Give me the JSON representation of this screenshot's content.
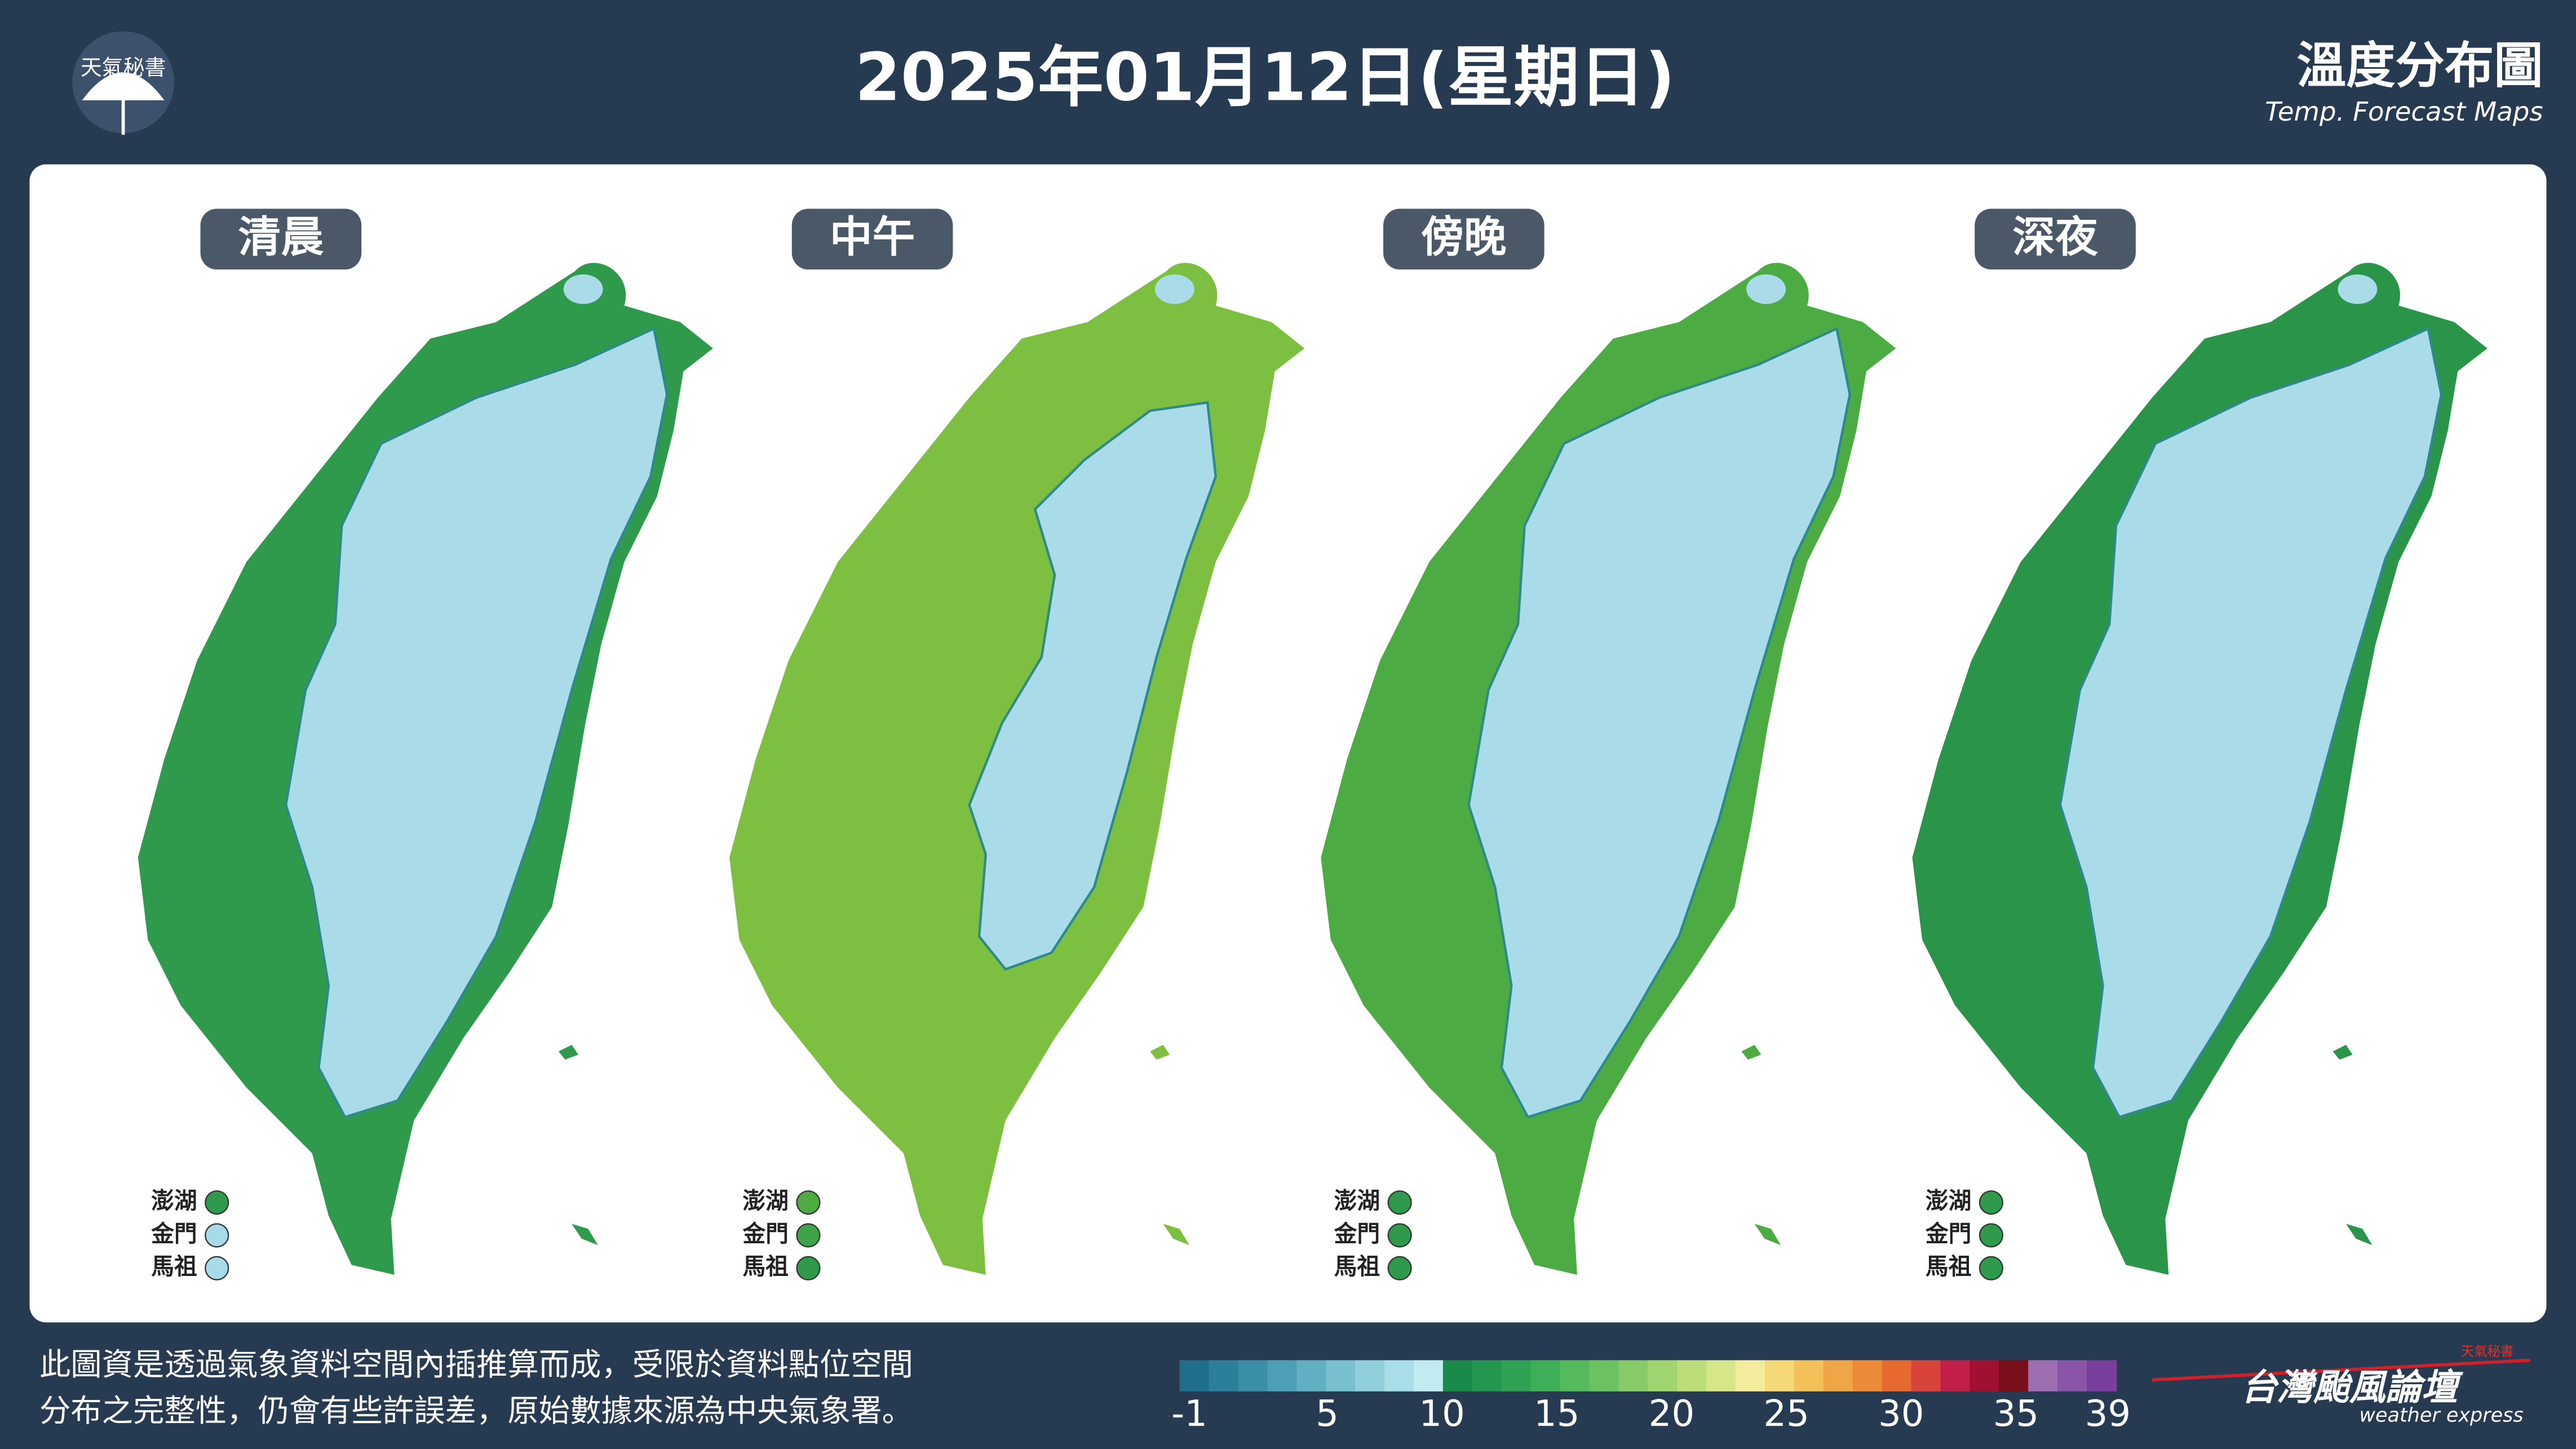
{
  "header": {
    "logo": "天氣秘書",
    "title": "2025年01月12日(星期日)",
    "map_title": "溫度分布圖",
    "map_subtitle": "Temp. Forecast Maps"
  },
  "panels": [
    {
      "label": "清晨",
      "land_color": "#2f9a4c",
      "islands": [
        {
          "name": "澎湖",
          "color": "#2f9a4c"
        },
        {
          "name": "金門",
          "color": "#a8dbe8"
        },
        {
          "name": "馬祖",
          "color": "#a8dbe8"
        }
      ]
    },
    {
      "label": "中午",
      "land_color": "#7dbf40",
      "islands": [
        {
          "name": "澎湖",
          "color": "#4eab42"
        },
        {
          "name": "金門",
          "color": "#3fa448"
        },
        {
          "name": "馬祖",
          "color": "#2f9a4c"
        }
      ]
    },
    {
      "label": "傍晚",
      "land_color": "#4dab44",
      "islands": [
        {
          "name": "澎湖",
          "color": "#2f9a4c"
        },
        {
          "name": "金門",
          "color": "#2f9a4c"
        },
        {
          "name": "馬祖",
          "color": "#2f9a4c"
        }
      ]
    },
    {
      "label": "深夜",
      "land_color": "#2a9448",
      "islands": [
        {
          "name": "澎湖",
          "color": "#2f9a4c"
        },
        {
          "name": "金門",
          "color": "#2f9a4c"
        },
        {
          "name": "馬祖",
          "color": "#2f9a4c"
        }
      ]
    }
  ],
  "footnote": [
    "此圖資是透過氣象資料空間內插推算而成，受限於資料點位空間",
    "分布之完整性，仍會有些許誤差，原始數據來源為中央氣象署。"
  ],
  "colorbar": {
    "colors": [
      "#1f6f8b",
      "#2b7f98",
      "#3a8fa6",
      "#4c9fb4",
      "#61afc2",
      "#78bfcf",
      "#90cfdc",
      "#a9dde7",
      "#c2ebf1",
      "#1a8a4a",
      "#23964f",
      "#2fa254",
      "#3fae58",
      "#55b95d",
      "#6cc262",
      "#86cb68",
      "#a0d46f",
      "#bddd7a",
      "#d8e68a",
      "#f3ec9c",
      "#f6d977",
      "#f4c05a",
      "#f0a646",
      "#ec8a3a",
      "#e66a30",
      "#d9443a",
      "#c21f4a",
      "#a01030",
      "#7a0f1c",
      "#9e6fb0",
      "#8a55a8",
      "#7a3f9c"
    ],
    "ticks": [
      -1,
      5,
      10,
      15,
      20,
      25,
      30,
      35,
      39
    ]
  },
  "brand": {
    "name": "台灣颱風論壇",
    "tagline": "weather express",
    "badge": "天氣秘書"
  }
}
